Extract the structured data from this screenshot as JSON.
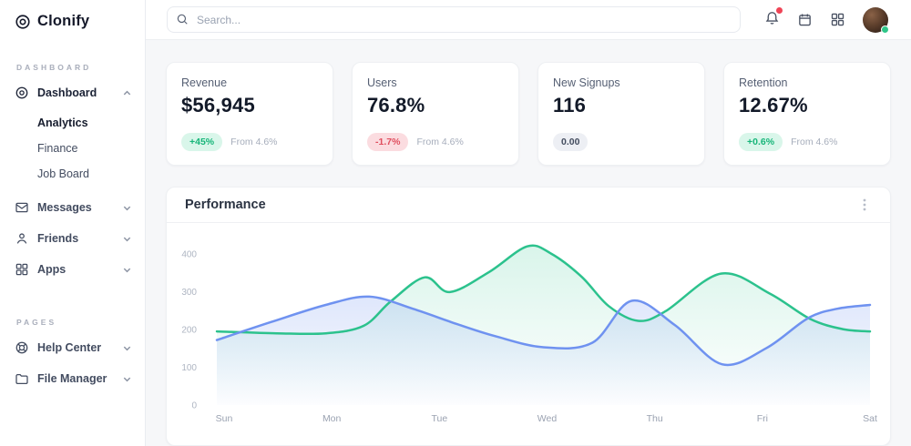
{
  "app": {
    "logo_text": "Clonify"
  },
  "topbar": {
    "search_placeholder": "Search...",
    "icons": [
      "bell-icon",
      "calendar-icon",
      "apps-grid-icon",
      "avatar"
    ],
    "bell_has_notification": true,
    "avatar_status": "online"
  },
  "sidebar": {
    "sections": [
      {
        "label": "DASHBOARD",
        "items": [
          {
            "label": "Dashboard",
            "icon": "dashboard-icon",
            "chevron": "up",
            "active": true,
            "children": [
              {
                "label": "Analytics",
                "active": true
              },
              {
                "label": "Finance",
                "active": false
              },
              {
                "label": "Job Board",
                "active": false
              }
            ]
          },
          {
            "label": "Messages",
            "icon": "envelope-icon",
            "chevron": "down"
          },
          {
            "label": "Friends",
            "icon": "person-icon",
            "chevron": "down"
          },
          {
            "label": "Apps",
            "icon": "grid-icon",
            "chevron": "down"
          }
        ]
      },
      {
        "label": "PAGES",
        "items": [
          {
            "label": "Help Center",
            "icon": "lifebuoy-icon",
            "chevron": "down"
          },
          {
            "label": "File Manager",
            "icon": "folder-icon",
            "chevron": "down"
          }
        ]
      }
    ]
  },
  "stats": [
    {
      "label": "Revenue",
      "value": "$56,945",
      "badge": "+45%",
      "badge_type": "up",
      "note": "From 4.6%"
    },
    {
      "label": "Users",
      "value": "76.8%",
      "badge": "-1.7%",
      "badge_type": "down",
      "note": "From 4.6%"
    },
    {
      "label": "New Signups",
      "value": "116",
      "badge": "0.00",
      "badge_type": "flat",
      "note": ""
    },
    {
      "label": "Retention",
      "value": "12.67%",
      "badge": "+0.6%",
      "badge_type": "up",
      "note": "From 4.6%"
    }
  ],
  "chart_data": {
    "type": "area",
    "title": "Performance",
    "menu_icon": "kebab-menu-icon",
    "x_labels": [
      "Sun",
      "Mon",
      "Tue",
      "Wed",
      "Thu",
      "Fri",
      "Sat"
    ],
    "y_ticks": [
      0,
      100,
      200,
      300,
      400
    ],
    "ylim": [
      0,
      430
    ],
    "grid": false,
    "legend": "none",
    "series": [
      {
        "name": "series-green",
        "color": "#2cc28d",
        "fill_from": "rgba(46,197,141,0.18)",
        "fill_to": "rgba(46,197,141,0)",
        "points": [
          [
            0,
            195
          ],
          [
            0.55,
            190
          ],
          [
            1,
            190
          ],
          [
            1.35,
            210
          ],
          [
            1.6,
            275
          ],
          [
            1.91,
            338
          ],
          [
            2.14,
            299
          ],
          [
            2.5,
            352
          ],
          [
            2.85,
            420
          ],
          [
            3.07,
            401
          ],
          [
            3.35,
            340
          ],
          [
            3.6,
            262
          ],
          [
            3.87,
            223
          ],
          [
            4.12,
            248
          ],
          [
            4.63,
            348
          ],
          [
            5.08,
            295
          ],
          [
            5.45,
            228
          ],
          [
            5.75,
            201
          ],
          [
            6,
            195
          ]
        ]
      },
      {
        "name": "series-blue",
        "color": "#6f92f0",
        "fill_from": "rgba(111,146,240,0.32)",
        "fill_to": "rgba(111,146,240,0.02)",
        "points": [
          [
            0,
            172
          ],
          [
            0.5,
            220
          ],
          [
            1,
            265
          ],
          [
            1.4,
            287
          ],
          [
            1.8,
            255
          ],
          [
            2.2,
            215
          ],
          [
            2.55,
            183
          ],
          [
            3.0,
            153
          ],
          [
            3.45,
            165
          ],
          [
            3.81,
            276
          ],
          [
            4.21,
            211
          ],
          [
            4.64,
            108
          ],
          [
            5.05,
            151
          ],
          [
            5.43,
            230
          ],
          [
            5.7,
            255
          ],
          [
            6,
            265
          ]
        ]
      }
    ]
  }
}
